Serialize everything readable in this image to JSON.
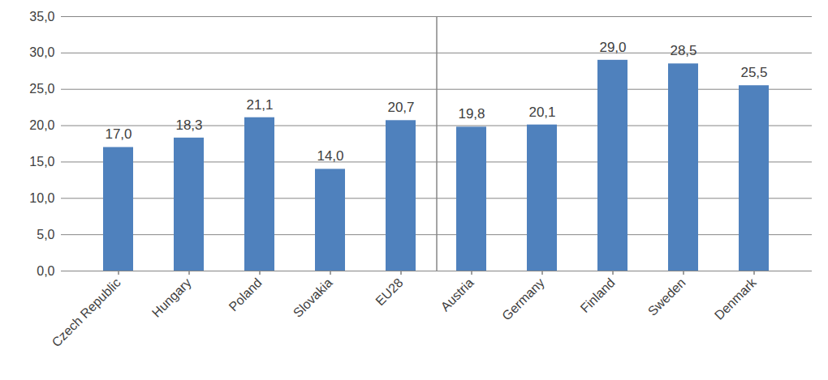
{
  "chart_data": {
    "type": "bar",
    "categories": [
      "Czech Republic",
      "Hungary",
      "Poland",
      "Slovakia",
      "EU28",
      "Austria",
      "Germany",
      "Finland",
      "Sweden",
      "Denmark"
    ],
    "values": [
      17.0,
      18.3,
      21.1,
      14.0,
      20.7,
      19.8,
      20.1,
      29.0,
      28.5,
      25.5
    ],
    "value_labels": [
      "17,0",
      "18,3",
      "21,1",
      "14,0",
      "20,7",
      "19,8",
      "20,1",
      "29,0",
      "28,5",
      "25,5"
    ],
    "data_labels": true,
    "color": "#4f81bd",
    "ylim": [
      0,
      35
    ],
    "yticks": [
      {
        "value": 0,
        "label": "0,0"
      },
      {
        "value": 5,
        "label": "5,0"
      },
      {
        "value": 10,
        "label": "10,0"
      },
      {
        "value": 15,
        "label": "15,0"
      },
      {
        "value": 20,
        "label": "20,0"
      },
      {
        "value": 25,
        "label": "25,0"
      },
      {
        "value": 30,
        "label": "30,0"
      },
      {
        "value": 35,
        "label": "35,0"
      }
    ],
    "grid": true
  }
}
